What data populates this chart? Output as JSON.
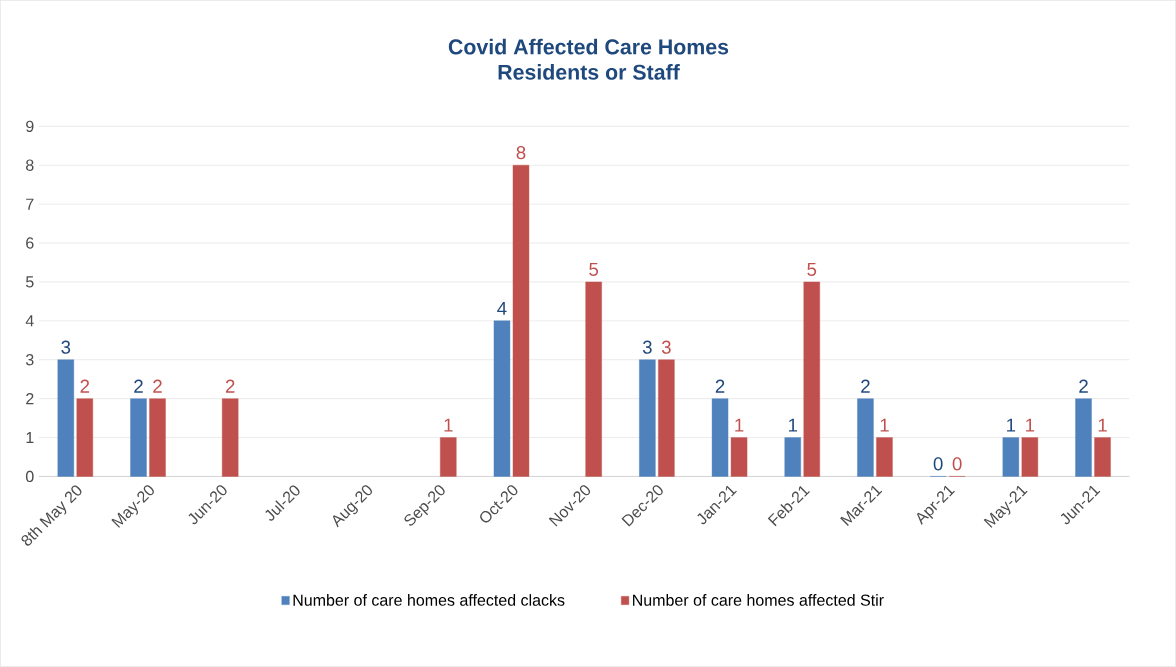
{
  "chart_data": {
    "type": "bar",
    "title": "Covid Affected Care Homes",
    "subtitle": "Residents or Staff",
    "categories": [
      "8th May 20",
      "May-20",
      "Jun-20",
      "Jul-20",
      "Aug-20",
      "Sep-20",
      "Oct-20",
      "Nov-20",
      "Dec-20",
      "Jan-21",
      "Feb-21",
      "Mar-21",
      "Apr-21",
      "May-21",
      "Jun-21"
    ],
    "series": [
      {
        "name": "Number of care homes affected clacks",
        "color": "#4f81bd",
        "values": [
          3,
          2,
          null,
          null,
          null,
          null,
          4,
          null,
          3,
          2,
          1,
          2,
          0,
          1,
          2
        ]
      },
      {
        "name": "Number of care homes affected Stir",
        "color": "#c0504d",
        "values": [
          2,
          2,
          2,
          null,
          null,
          1,
          8,
          5,
          3,
          1,
          5,
          1,
          0,
          1,
          1
        ]
      }
    ],
    "ylim": [
      0,
      9
    ],
    "yticks": [
      0,
      1,
      2,
      3,
      4,
      5,
      6,
      7,
      8,
      9
    ],
    "grid": "y",
    "legend": "bottom",
    "data_labels": true
  }
}
